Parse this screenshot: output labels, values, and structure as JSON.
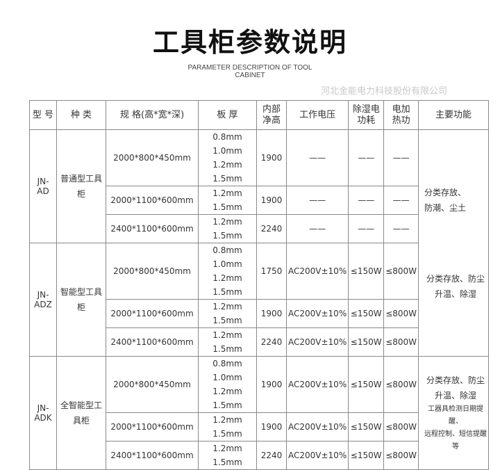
{
  "title": "工具柜参数说明",
  "subtitle": "PARAMETER DESCRIPTION OF TOOL CABINET",
  "watermark": "河北金能电力科技股份有限公司",
  "headers": [
    "型 号",
    "种 类",
    "规 格(高*宽*深)",
    "板 厚",
    "内部净高",
    "工作电压",
    "除湿电功耗",
    "电加热功",
    "主要功能"
  ],
  "groups": [
    {
      "model": "JN-AD",
      "type": "普通型工具柜",
      "func": [
        "分类存放、",
        "防潮、尘土"
      ],
      "rows": [
        {
          "spec": "2000*800*450mm",
          "thick": [
            "0.8mm 1.0mm",
            "1.2mm 1.5mm"
          ],
          "height": "1900",
          "volt": "——",
          "dehum": "——",
          "heat": "——"
        },
        {
          "spec": "2000*1100*600mm",
          "thick": [
            "1.2mm 1.5mm"
          ],
          "height": "1900",
          "volt": "——",
          "dehum": "——",
          "heat": "——"
        },
        {
          "spec": "2400*1100*600mm",
          "thick": [
            "1.2mm 1.5mm"
          ],
          "height": "2240",
          "volt": "——",
          "dehum": "——",
          "heat": "——"
        }
      ]
    },
    {
      "model": "JN-ADZ",
      "type": "智能型工具柜",
      "func": [
        "分类存放、防尘",
        "升温、除湿"
      ],
      "rows": [
        {
          "spec": "2000*800*450mm",
          "thick": [
            "0.8mm 1.0mm",
            "1.2mm 1.5mm"
          ],
          "height": "1750",
          "volt": "AC200V±10%",
          "dehum": "≤150W",
          "heat": "≤800W"
        },
        {
          "spec": "2000*1100*600mm",
          "thick": [
            "1.2mm 1.5mm"
          ],
          "height": "1900",
          "volt": "AC200V±10%",
          "dehum": "≤150W",
          "heat": "≤800W"
        },
        {
          "spec": "2400*1100*600mm",
          "thick": [
            "1.2mm 1.5mm"
          ],
          "height": "2240",
          "volt": "AC200V±10%",
          "dehum": "≤150W",
          "heat": "≤800W"
        }
      ]
    },
    {
      "model": "JN-ADK",
      "type": "全智能型工具柜",
      "func": [
        "分类存放、防尘",
        "升温、除湿",
        "工器具检测日期提醒、",
        "远程控制、短信提醒等"
      ],
      "rows": [
        {
          "spec": "2000*800*450mm",
          "thick": [
            "0.8mm 1.0mm",
            "1.2mm 1.5mm"
          ],
          "height": "1900",
          "volt": "AC200V±10%",
          "dehum": "≤150W",
          "heat": "≤800W"
        },
        {
          "spec": "2000*1100*600mm",
          "thick": [
            "1.2mm 1.5mm"
          ],
          "height": "1900",
          "volt": "AC200V±10%",
          "dehum": "≤150W",
          "heat": "≤800W"
        },
        {
          "spec": "2400*1100*600mm",
          "thick": [
            "1.2mm 1.5mm"
          ],
          "height": "2240",
          "volt": "AC200V±10%",
          "dehum": "≤150W",
          "heat": "≤800W"
        }
      ]
    }
  ]
}
